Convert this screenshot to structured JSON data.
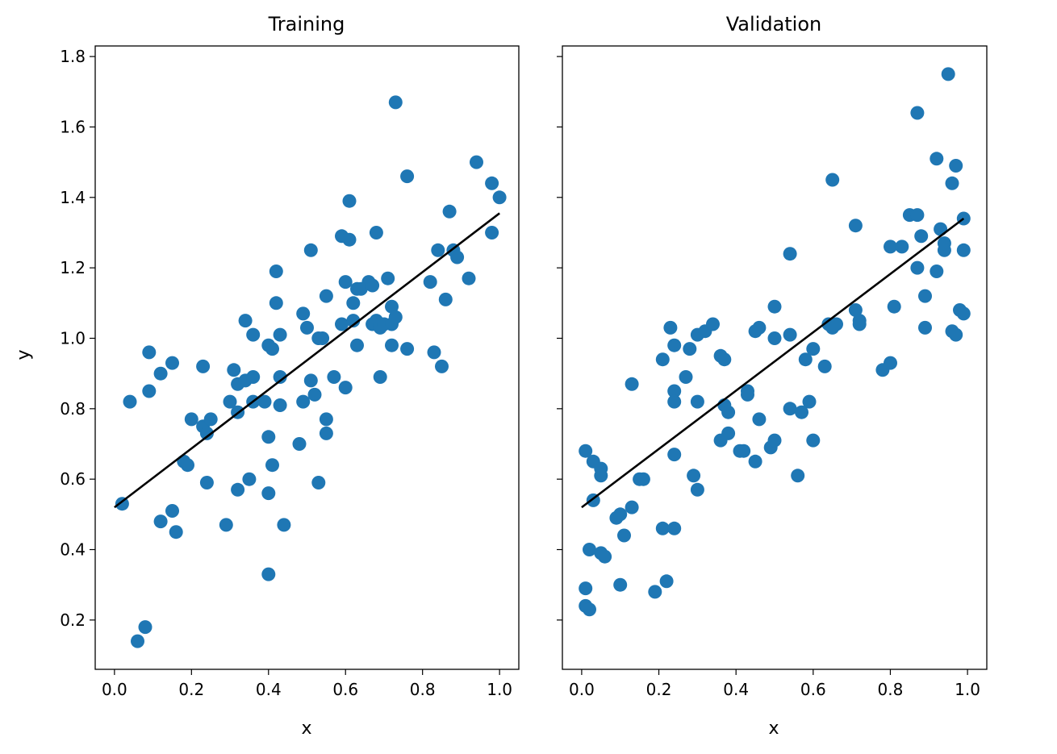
{
  "chart_data": [
    {
      "type": "scatter",
      "title": "Training",
      "xlabel": "x",
      "ylabel": "y",
      "xlim": [
        -0.05,
        1.05
      ],
      "ylim": [
        0.06,
        1.83
      ],
      "xticks": [
        "0.0",
        "0.2",
        "0.4",
        "0.6",
        "0.8",
        "1.0"
      ],
      "yticks": [
        "0.2",
        "0.4",
        "0.6",
        "0.8",
        "1.0",
        "1.2",
        "1.4",
        "1.6",
        "1.8"
      ],
      "marker_color": "#1f77b4",
      "line_color": "#000000",
      "fit_line": [
        [
          0.0,
          0.52
        ],
        [
          1.0,
          1.355
        ]
      ],
      "points": [
        [
          0.02,
          0.53
        ],
        [
          0.04,
          0.82
        ],
        [
          0.06,
          0.14
        ],
        [
          0.08,
          0.18
        ],
        [
          0.09,
          0.96
        ],
        [
          0.09,
          0.85
        ],
        [
          0.12,
          0.9
        ],
        [
          0.12,
          0.48
        ],
        [
          0.15,
          0.51
        ],
        [
          0.15,
          0.93
        ],
        [
          0.16,
          0.45
        ],
        [
          0.18,
          0.65
        ],
        [
          0.19,
          0.64
        ],
        [
          0.2,
          0.77
        ],
        [
          0.23,
          0.92
        ],
        [
          0.23,
          0.75
        ],
        [
          0.24,
          0.73
        ],
        [
          0.24,
          0.59
        ],
        [
          0.25,
          0.77
        ],
        [
          0.29,
          0.47
        ],
        [
          0.3,
          0.82
        ],
        [
          0.31,
          0.91
        ],
        [
          0.32,
          0.79
        ],
        [
          0.32,
          0.57
        ],
        [
          0.32,
          0.87
        ],
        [
          0.34,
          1.05
        ],
        [
          0.34,
          0.88
        ],
        [
          0.35,
          0.6
        ],
        [
          0.36,
          0.89
        ],
        [
          0.36,
          0.82
        ],
        [
          0.36,
          1.01
        ],
        [
          0.39,
          0.82
        ],
        [
          0.4,
          0.98
        ],
        [
          0.4,
          0.72
        ],
        [
          0.4,
          0.56
        ],
        [
          0.4,
          0.33
        ],
        [
          0.41,
          0.64
        ],
        [
          0.41,
          0.97
        ],
        [
          0.42,
          1.1
        ],
        [
          0.42,
          1.19
        ],
        [
          0.43,
          0.89
        ],
        [
          0.43,
          0.81
        ],
        [
          0.43,
          1.01
        ],
        [
          0.44,
          0.47
        ],
        [
          0.48,
          0.7
        ],
        [
          0.49,
          1.07
        ],
        [
          0.49,
          0.82
        ],
        [
          0.5,
          1.03
        ],
        [
          0.51,
          1.25
        ],
        [
          0.51,
          0.88
        ],
        [
          0.52,
          0.84
        ],
        [
          0.53,
          1.0
        ],
        [
          0.53,
          0.59
        ],
        [
          0.54,
          1.0
        ],
        [
          0.55,
          1.12
        ],
        [
          0.55,
          0.73
        ],
        [
          0.55,
          0.77
        ],
        [
          0.57,
          0.89
        ],
        [
          0.59,
          1.04
        ],
        [
          0.59,
          1.29
        ],
        [
          0.6,
          0.86
        ],
        [
          0.6,
          1.16
        ],
        [
          0.61,
          1.28
        ],
        [
          0.61,
          1.39
        ],
        [
          0.62,
          1.1
        ],
        [
          0.63,
          1.14
        ],
        [
          0.63,
          0.98
        ],
        [
          0.62,
          1.05
        ],
        [
          0.64,
          1.14
        ],
        [
          0.66,
          1.16
        ],
        [
          0.67,
          1.15
        ],
        [
          0.67,
          1.04
        ],
        [
          0.68,
          1.05
        ],
        [
          0.68,
          1.3
        ],
        [
          0.69,
          1.03
        ],
        [
          0.69,
          1.04
        ],
        [
          0.69,
          0.89
        ],
        [
          0.7,
          1.04
        ],
        [
          0.71,
          1.17
        ],
        [
          0.72,
          1.09
        ],
        [
          0.72,
          0.98
        ],
        [
          0.72,
          1.04
        ],
        [
          0.73,
          1.06
        ],
        [
          0.73,
          1.67
        ],
        [
          0.76,
          0.97
        ],
        [
          0.76,
          1.46
        ],
        [
          0.82,
          1.16
        ],
        [
          0.83,
          0.96
        ],
        [
          0.84,
          1.25
        ],
        [
          0.85,
          0.92
        ],
        [
          0.86,
          1.11
        ],
        [
          0.87,
          1.36
        ],
        [
          0.88,
          1.25
        ],
        [
          0.89,
          1.23
        ],
        [
          0.92,
          1.17
        ],
        [
          0.94,
          1.5
        ],
        [
          0.98,
          1.3
        ],
        [
          0.98,
          1.44
        ],
        [
          1.0,
          1.4
        ]
      ]
    },
    {
      "type": "scatter",
      "title": "Validation",
      "xlabel": "x",
      "ylabel": "",
      "xlim": [
        -0.05,
        1.05
      ],
      "ylim": [
        0.06,
        1.83
      ],
      "xticks": [
        "0.0",
        "0.2",
        "0.4",
        "0.6",
        "0.8",
        "1.0"
      ],
      "yticks": [],
      "marker_color": "#1f77b4",
      "line_color": "#000000",
      "fit_line": [
        [
          0.0,
          0.52
        ],
        [
          0.99,
          1.34
        ]
      ],
      "points": [
        [
          0.01,
          0.68
        ],
        [
          0.01,
          0.29
        ],
        [
          0.01,
          0.24
        ],
        [
          0.02,
          0.23
        ],
        [
          0.02,
          0.4
        ],
        [
          0.03,
          0.54
        ],
        [
          0.03,
          0.65
        ],
        [
          0.05,
          0.39
        ],
        [
          0.05,
          0.63
        ],
        [
          0.05,
          0.61
        ],
        [
          0.06,
          0.38
        ],
        [
          0.09,
          0.49
        ],
        [
          0.1,
          0.3
        ],
        [
          0.1,
          0.5
        ],
        [
          0.11,
          0.44
        ],
        [
          0.13,
          0.52
        ],
        [
          0.13,
          0.87
        ],
        [
          0.15,
          0.6
        ],
        [
          0.16,
          0.6
        ],
        [
          0.19,
          0.28
        ],
        [
          0.21,
          0.46
        ],
        [
          0.21,
          0.94
        ],
        [
          0.22,
          0.31
        ],
        [
          0.23,
          1.03
        ],
        [
          0.24,
          0.85
        ],
        [
          0.24,
          0.98
        ],
        [
          0.24,
          0.82
        ],
        [
          0.24,
          0.46
        ],
        [
          0.24,
          0.67
        ],
        [
          0.27,
          0.89
        ],
        [
          0.28,
          0.97
        ],
        [
          0.29,
          0.61
        ],
        [
          0.3,
          0.57
        ],
        [
          0.3,
          1.01
        ],
        [
          0.3,
          0.82
        ],
        [
          0.32,
          1.02
        ],
        [
          0.34,
          1.04
        ],
        [
          0.36,
          0.71
        ],
        [
          0.36,
          0.95
        ],
        [
          0.37,
          0.94
        ],
        [
          0.37,
          0.81
        ],
        [
          0.38,
          0.73
        ],
        [
          0.38,
          0.79
        ],
        [
          0.41,
          0.68
        ],
        [
          0.42,
          0.68
        ],
        [
          0.43,
          0.85
        ],
        [
          0.43,
          0.84
        ],
        [
          0.45,
          0.65
        ],
        [
          0.45,
          1.02
        ],
        [
          0.46,
          1.03
        ],
        [
          0.46,
          0.77
        ],
        [
          0.49,
          0.69
        ],
        [
          0.5,
          1.0
        ],
        [
          0.5,
          0.71
        ],
        [
          0.5,
          1.09
        ],
        [
          0.54,
          1.24
        ],
        [
          0.54,
          0.8
        ],
        [
          0.54,
          1.01
        ],
        [
          0.56,
          0.61
        ],
        [
          0.57,
          0.79
        ],
        [
          0.58,
          0.94
        ],
        [
          0.59,
          0.82
        ],
        [
          0.6,
          0.97
        ],
        [
          0.6,
          0.71
        ],
        [
          0.63,
          0.92
        ],
        [
          0.64,
          1.04
        ],
        [
          0.65,
          1.03
        ],
        [
          0.65,
          1.45
        ],
        [
          0.66,
          1.04
        ],
        [
          0.71,
          1.32
        ],
        [
          0.71,
          1.08
        ],
        [
          0.72,
          1.04
        ],
        [
          0.72,
          1.05
        ],
        [
          0.78,
          0.91
        ],
        [
          0.8,
          1.26
        ],
        [
          0.8,
          0.93
        ],
        [
          0.81,
          1.09
        ],
        [
          0.83,
          1.26
        ],
        [
          0.85,
          1.35
        ],
        [
          0.87,
          1.35
        ],
        [
          0.87,
          1.2
        ],
        [
          0.87,
          1.64
        ],
        [
          0.88,
          1.29
        ],
        [
          0.89,
          1.03
        ],
        [
          0.89,
          1.12
        ],
        [
          0.92,
          1.19
        ],
        [
          0.92,
          1.51
        ],
        [
          0.93,
          1.31
        ],
        [
          0.94,
          1.25
        ],
        [
          0.94,
          1.27
        ],
        [
          0.95,
          1.75
        ],
        [
          0.96,
          1.02
        ],
        [
          0.97,
          1.01
        ],
        [
          0.96,
          1.44
        ],
        [
          0.97,
          1.49
        ],
        [
          0.98,
          1.08
        ],
        [
          0.99,
          1.34
        ],
        [
          0.99,
          1.07
        ],
        [
          0.99,
          1.25
        ]
      ]
    }
  ]
}
